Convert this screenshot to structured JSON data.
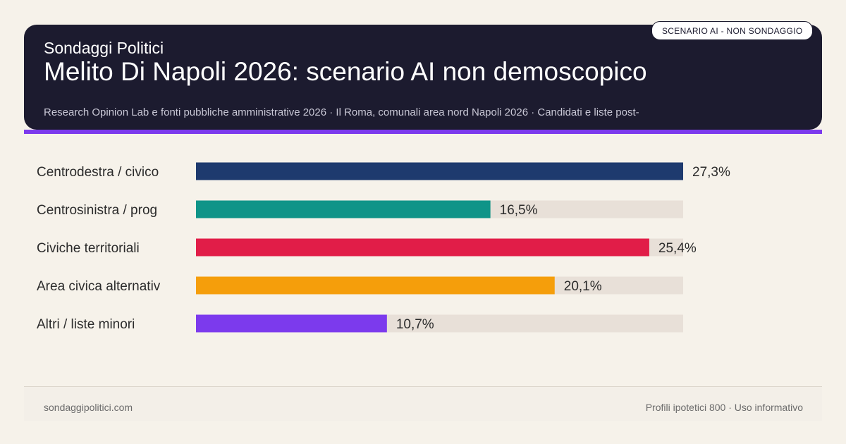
{
  "header": {
    "brand": "Sondaggi Politici",
    "title": "Melito Di Napoli 2026: scenario AI non demoscopico",
    "source": "Research Opinion Lab e fonti pubbliche amministrative 2026 · Il Roma, comunali area nord Napoli 2026 · Candidati e liste post-",
    "badge": "SCENARIO AI - NON SONDAGGIO"
  },
  "chart_data": {
    "type": "bar",
    "orientation": "horizontal",
    "categories": [
      "Centrodestra / civico",
      "Centrosinistra / prog",
      "Civiche territoriali",
      "Area civica alternativ",
      "Altri / liste minori"
    ],
    "values": [
      27.3,
      16.5,
      25.4,
      20.1,
      10.7
    ],
    "value_labels": [
      "27,3%",
      "16,5%",
      "25,4%",
      "20,1%",
      "10,7%"
    ],
    "colors": [
      "#1e3a6e",
      "#0f9488",
      "#e11d48",
      "#f59e0b",
      "#7c3aed"
    ],
    "track_color": "#e8e0d8",
    "xlim": [
      0,
      27.3
    ],
    "title": "",
    "xlabel": "",
    "ylabel": "",
    "grid": false
  },
  "footer": {
    "site": "sondaggipolitici.com",
    "note": "Profili ipotetici 800 · Uso informativo"
  }
}
